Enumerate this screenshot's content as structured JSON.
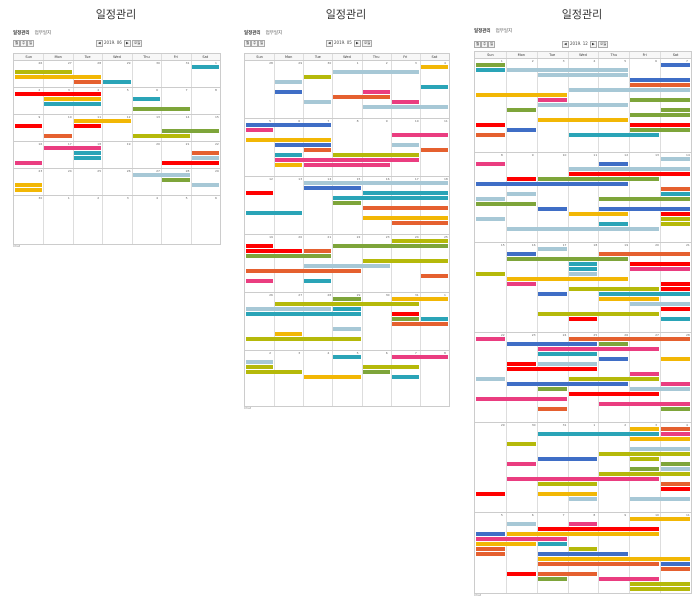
{
  "colors": {
    "teal": "#2aa4b7",
    "red": "#ff0000",
    "orange": "#e5602f",
    "yellow": "#f2b705",
    "olive": "#b5b90a",
    "pink": "#ea3d80",
    "blue": "#3f6ec6",
    "light": "#a7c8d6",
    "green": "#7ea53a"
  },
  "panels": [
    {
      "name": "panel-2019-06",
      "title": "일정관리",
      "heading": "일정관리",
      "subheading": "업무일지",
      "nav_label": "2019. 06",
      "today_label": "오늘",
      "prev_label": "◀",
      "next_label": "▶",
      "view_buttons": [
        "월",
        "주",
        "일"
      ],
      "weekdays": [
        "Sun",
        "Mon",
        "Tue",
        "Wed",
        "Thu",
        "Fri",
        "Sat"
      ],
      "footer": "Chat",
      "weeks": [
        [
          "26",
          "27",
          "28",
          "29",
          "30",
          "31",
          "1"
        ],
        [
          "2",
          "3",
          "4",
          "5",
          "6",
          "7",
          "8"
        ],
        [
          "9",
          "10",
          "11",
          "12",
          "13",
          "14",
          "15"
        ],
        [
          "16",
          "17",
          "18",
          "19",
          "20",
          "21",
          "22"
        ],
        [
          "23",
          "24",
          "25",
          "26",
          "27",
          "28",
          "29"
        ],
        [
          "30",
          "1",
          "2",
          "3",
          "4",
          "5",
          "6"
        ]
      ]
    },
    {
      "name": "panel-2019-05",
      "title": "일정관리",
      "heading": "일정관리",
      "subheading": "업무일지",
      "nav_label": "2019. 05",
      "today_label": "오늘",
      "prev_label": "◀",
      "next_label": "▶",
      "view_buttons": [
        "월",
        "주",
        "일"
      ],
      "weekdays": [
        "Sun",
        "Mon",
        "Tue",
        "Wed",
        "Thu",
        "Fri",
        "Sat"
      ],
      "footer": "Chat",
      "weeks": [
        [
          "28",
          "29",
          "30",
          "1",
          "2",
          "3",
          "4"
        ],
        [
          "5",
          "6",
          "7",
          "8",
          "9",
          "10",
          "11"
        ],
        [
          "12",
          "13",
          "14",
          "15",
          "16",
          "17",
          "18"
        ],
        [
          "19",
          "20",
          "21",
          "22",
          "23",
          "24",
          "25"
        ],
        [
          "26",
          "27",
          "28",
          "29",
          "30",
          "31",
          "1"
        ],
        [
          "2",
          "3",
          "4",
          "5",
          "6",
          "7",
          "8"
        ]
      ]
    },
    {
      "name": "panel-2019-12",
      "title": "일정관리",
      "heading": "일정관리",
      "subheading": "업무일지",
      "nav_label": "2019. 12",
      "today_label": "오늘",
      "prev_label": "◀",
      "next_label": "▶",
      "view_buttons": [
        "월",
        "주",
        "일"
      ],
      "weekdays": [
        "Sun",
        "Mon",
        "Tue",
        "Wed",
        "Thu",
        "Fri",
        "Sat"
      ],
      "footer": "Chat",
      "weeks": [
        [
          "1",
          "2",
          "3",
          "4",
          "5",
          "6",
          "7"
        ],
        [
          "8",
          "9",
          "10",
          "11",
          "12",
          "13",
          "14"
        ],
        [
          "15",
          "16",
          "17",
          "18",
          "19",
          "20",
          "21"
        ],
        [
          "22",
          "23",
          "24",
          "25",
          "26",
          "27",
          "28"
        ],
        [
          "29",
          "30",
          "31",
          "1",
          "2",
          "3",
          "4"
        ],
        [
          "5",
          "6",
          "7",
          "8",
          "9",
          "10",
          "11"
        ]
      ]
    }
  ]
}
